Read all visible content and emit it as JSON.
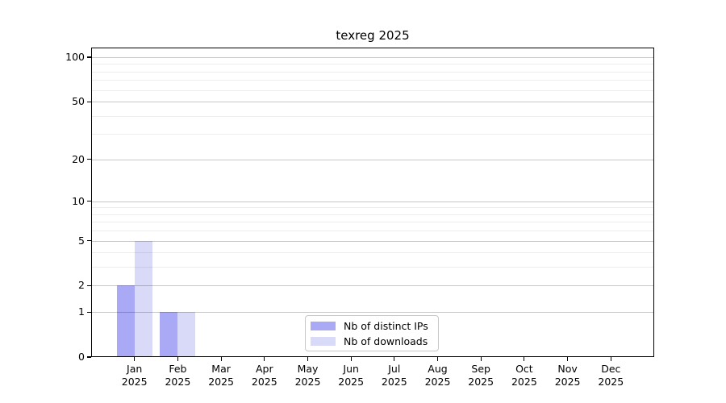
{
  "chart_data": {
    "type": "bar",
    "title": "texreg 2025",
    "categories": [
      "Jan",
      "Feb",
      "Mar",
      "Apr",
      "May",
      "Jun",
      "Jul",
      "Aug",
      "Sep",
      "Oct",
      "Nov",
      "Dec"
    ],
    "category_year": "2025",
    "series": [
      {
        "name": "Nb of distinct IPs",
        "color": "#a9a9f5",
        "values": [
          2,
          1,
          0,
          0,
          0,
          0,
          0,
          0,
          0,
          0,
          0,
          0
        ]
      },
      {
        "name": "Nb of downloads",
        "color": "#d9d9f8",
        "values": [
          5,
          1,
          0,
          0,
          0,
          0,
          0,
          0,
          0,
          0,
          0,
          0
        ]
      }
    ],
    "y_axis": {
      "scale": "log1p",
      "min": 0,
      "max": 100,
      "major_ticks": [
        0,
        1,
        2,
        5,
        10,
        20,
        50,
        100
      ],
      "minor_gridlines": [
        3,
        4,
        6,
        7,
        8,
        9,
        30,
        40,
        60,
        70,
        80,
        90
      ]
    },
    "legend_position": "bottom-center",
    "grid": true,
    "colors": {
      "major_grid": "rgba(0,0,0,0.22)",
      "minor_grid": "rgba(0,0,0,0.07)",
      "axis": "#000000",
      "background": "#ffffff"
    }
  }
}
